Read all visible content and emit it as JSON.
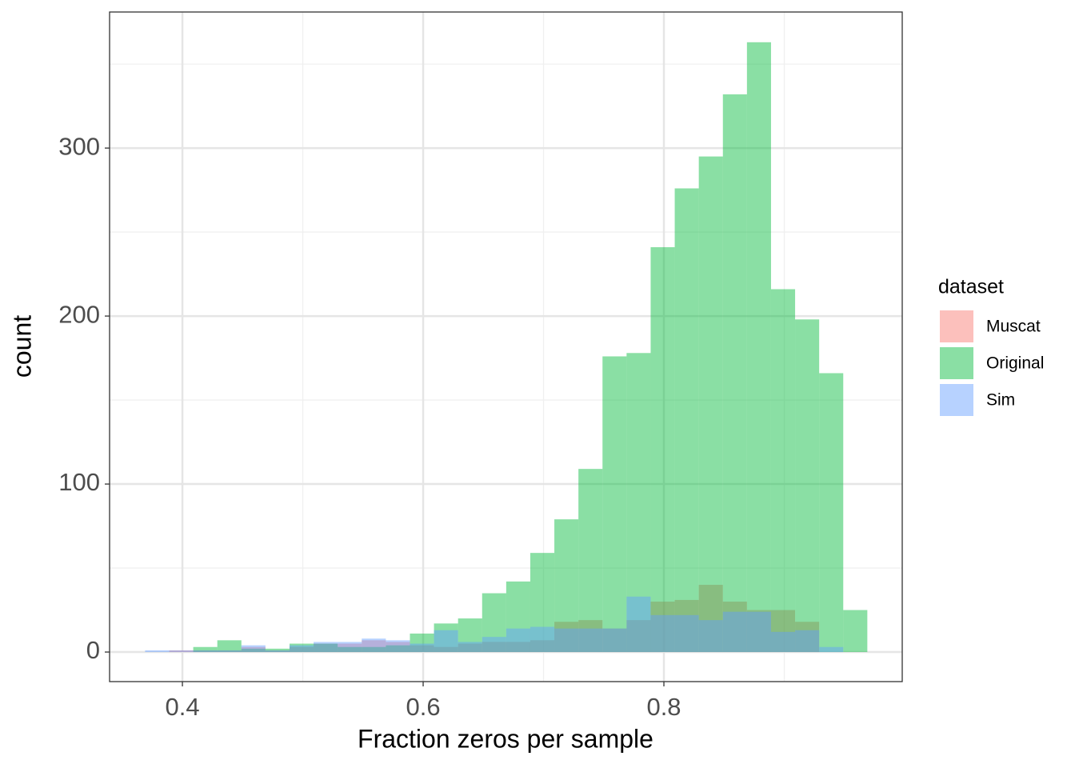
{
  "chart_data": {
    "type": "histogram",
    "x_label": "Fraction zeros per sample",
    "y_label": "count",
    "legend_title": "dataset",
    "legend_position": "right",
    "grid": true,
    "bins": [
      0.369,
      0.389,
      0.409,
      0.429,
      0.449,
      0.469,
      0.489,
      0.509,
      0.529,
      0.549,
      0.569,
      0.589,
      0.609,
      0.629,
      0.649,
      0.669,
      0.689,
      0.709,
      0.729,
      0.749,
      0.769,
      0.789,
      0.809,
      0.829,
      0.849,
      0.869,
      0.889,
      0.909,
      0.929,
      0.949,
      0.969
    ],
    "series": [
      {
        "name": "Muscat",
        "color": "#F8766D",
        "values": [
          0,
          1,
          1,
          1,
          3,
          1,
          3,
          5,
          5,
          7,
          6,
          4,
          3,
          5,
          6,
          6,
          7,
          18,
          19,
          14,
          19,
          30,
          31,
          40,
          30,
          25,
          25,
          18,
          0,
          0
        ]
      },
      {
        "name": "Original",
        "color": "#00BA38",
        "values": [
          0,
          0,
          3,
          7,
          2,
          2,
          5,
          5,
          3,
          3,
          4,
          11,
          17,
          20,
          35,
          42,
          59,
          79,
          109,
          176,
          178,
          241,
          276,
          295,
          332,
          363,
          216,
          198,
          166,
          25
        ]
      },
      {
        "name": "Sim",
        "color": "#619CFF",
        "values": [
          1,
          1,
          1,
          1,
          4,
          1,
          4,
          6,
          6,
          8,
          7,
          5,
          13,
          6,
          9,
          14,
          15,
          14,
          14,
          14,
          33,
          22,
          22,
          19,
          24,
          24,
          12,
          13,
          3,
          0
        ]
      }
    ],
    "xlim": [
      0.3395,
      0.998
    ],
    "xticks": [
      0.4,
      0.6,
      0.8
    ],
    "ylim": [
      -17.6,
      381
    ],
    "yticks": [
      0,
      100,
      200,
      300
    ]
  }
}
